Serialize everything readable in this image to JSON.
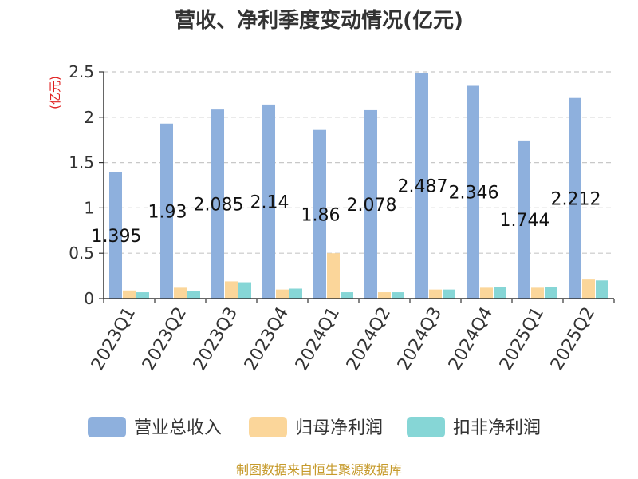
{
  "chart_data": {
    "type": "bar",
    "title": "营收、净利季度变动情况(亿元)",
    "unit_label": "(亿元)",
    "categories": [
      "2023Q1",
      "2023Q2",
      "2023Q3",
      "2023Q4",
      "2024Q1",
      "2024Q2",
      "2024Q3",
      "2024Q4",
      "2025Q1",
      "2025Q2"
    ],
    "series": [
      {
        "name": "营业总收入",
        "color": "#8eb0dd",
        "values": [
          1.395,
          1.93,
          2.085,
          2.14,
          1.86,
          2.078,
          2.487,
          2.346,
          1.744,
          2.212
        ]
      },
      {
        "name": "归母净利润",
        "color": "#fbd69a",
        "values": [
          0.09,
          0.12,
          0.19,
          0.1,
          0.5,
          0.07,
          0.1,
          0.12,
          0.12,
          0.21
        ]
      },
      {
        "name": "扣非净利润",
        "color": "#86d6d6",
        "values": [
          0.07,
          0.08,
          0.18,
          0.11,
          0.07,
          0.07,
          0.1,
          0.13,
          0.13,
          0.2
        ]
      }
    ],
    "data_labels": [
      "1.395",
      "1.93",
      "2.085",
      "2.14",
      "1.86",
      "2.078",
      "2.487",
      "2.346",
      "1.744",
      "2.212"
    ],
    "ylim": [
      0,
      2.5
    ],
    "yticks": [
      "0",
      "0.5",
      "1",
      "1.5",
      "2",
      "2.5"
    ],
    "grid": true,
    "legend_position": "bottom"
  },
  "source_text": "制图数据来自恒生聚源数据库"
}
